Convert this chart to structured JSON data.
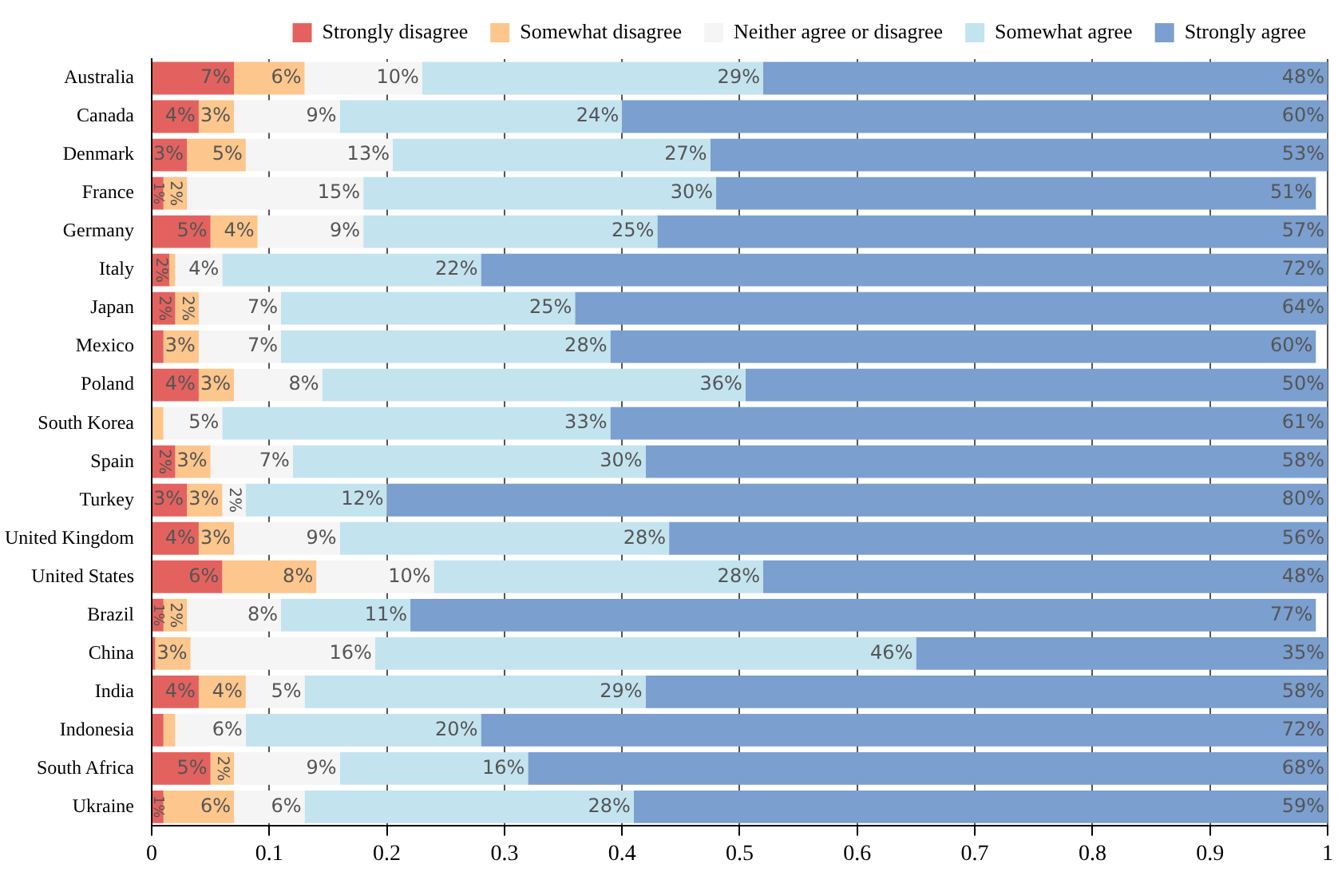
{
  "chart_data": {
    "type": "bar",
    "orientation": "horizontal",
    "stacked": true,
    "categories": [
      "Australia",
      "Canada",
      "Denmark",
      "France",
      "Germany",
      "Italy",
      "Japan",
      "Mexico",
      "Poland",
      "South Korea",
      "Spain",
      "Turkey",
      "United Kingdom",
      "United States",
      "Brazil",
      "China",
      "India",
      "Indonesia",
      "South Africa",
      "Ukraine"
    ],
    "series": [
      {
        "name": "Strongly disagree",
        "color": "#e3625f",
        "values": [
          0.07,
          0.04,
          0.03,
          0.01,
          0.05,
          0.015,
          0.02,
          0.01,
          0.04,
          0,
          0.02,
          0.03,
          0.04,
          0.06,
          0.01,
          0.003,
          0.04,
          0.01,
          0.05,
          0.01
        ],
        "value_labels": [
          "7%",
          "4%",
          "3%",
          "1%",
          "5%",
          "2%",
          "2%",
          null,
          "4%",
          null,
          "2%",
          "3%",
          "4%",
          "6%",
          "1%",
          null,
          "4%",
          null,
          "5%",
          "1%"
        ]
      },
      {
        "name": "Somewhat disagree",
        "color": "#fdc68c",
        "values": [
          0.06,
          0.03,
          0.05,
          0.02,
          0.04,
          0.005,
          0.02,
          0.03,
          0.03,
          0.01,
          0.03,
          0.03,
          0.03,
          0.08,
          0.02,
          0.03,
          0.04,
          0.01,
          0.02,
          0.06
        ],
        "value_labels": [
          "6%",
          "3%",
          "5%",
          "2%",
          "4%",
          null,
          "2%",
          "3%",
          "3%",
          null,
          "3%",
          "3%",
          "3%",
          "8%",
          "2%",
          "3%",
          "4%",
          null,
          "2%",
          "6%"
        ]
      },
      {
        "name": "Neither agree or disagree",
        "color": "#f5f5f5",
        "values": [
          0.1,
          0.09,
          0.125,
          0.15,
          0.09,
          0.04,
          0.07,
          0.07,
          0.075,
          0.05,
          0.07,
          0.02,
          0.09,
          0.1,
          0.08,
          0.157,
          0.05,
          0.06,
          0.09,
          0.06
        ],
        "value_labels": [
          "10%",
          "9%",
          "13%",
          "15%",
          "9%",
          "4%",
          "7%",
          "7%",
          "8%",
          "5%",
          "7%",
          "2%",
          "9%",
          "10%",
          "8%",
          "16%",
          "5%",
          "6%",
          "9%",
          "6%"
        ]
      },
      {
        "name": "Somewhat agree",
        "color": "#c3e3ef",
        "values": [
          0.29,
          0.24,
          0.27,
          0.3,
          0.25,
          0.22,
          0.25,
          0.28,
          0.36,
          0.33,
          0.3,
          0.12,
          0.28,
          0.28,
          0.11,
          0.46,
          0.29,
          0.2,
          0.16,
          0.28
        ],
        "value_labels": [
          "29%",
          "24%",
          "27%",
          "30%",
          "25%",
          "22%",
          "25%",
          "28%",
          "36%",
          "33%",
          "30%",
          "12%",
          "28%",
          "28%",
          "11%",
          "46%",
          "29%",
          "20%",
          "16%",
          "28%"
        ]
      },
      {
        "name": "Strongly agree",
        "color": "#7b9fcf",
        "values": [
          0.48,
          0.6,
          0.525,
          0.51,
          0.57,
          0.72,
          0.64,
          0.6,
          0.495,
          0.61,
          0.58,
          0.8,
          0.56,
          0.48,
          0.77,
          0.35,
          0.58,
          0.72,
          0.68,
          0.59
        ],
        "value_labels": [
          "48%",
          "60%",
          "53%",
          "51%",
          "57%",
          "72%",
          "64%",
          "60%",
          "50%",
          "61%",
          "58%",
          "80%",
          "56%",
          "48%",
          "77%",
          "35%",
          "58%",
          "72%",
          "68%",
          "59%"
        ]
      }
    ],
    "xlim": [
      0,
      1
    ],
    "xticks": [
      0,
      0.1,
      0.2,
      0.3,
      0.4,
      0.5,
      0.6,
      0.7,
      0.8,
      0.9,
      1
    ],
    "grid": "x",
    "legend": "top right"
  }
}
